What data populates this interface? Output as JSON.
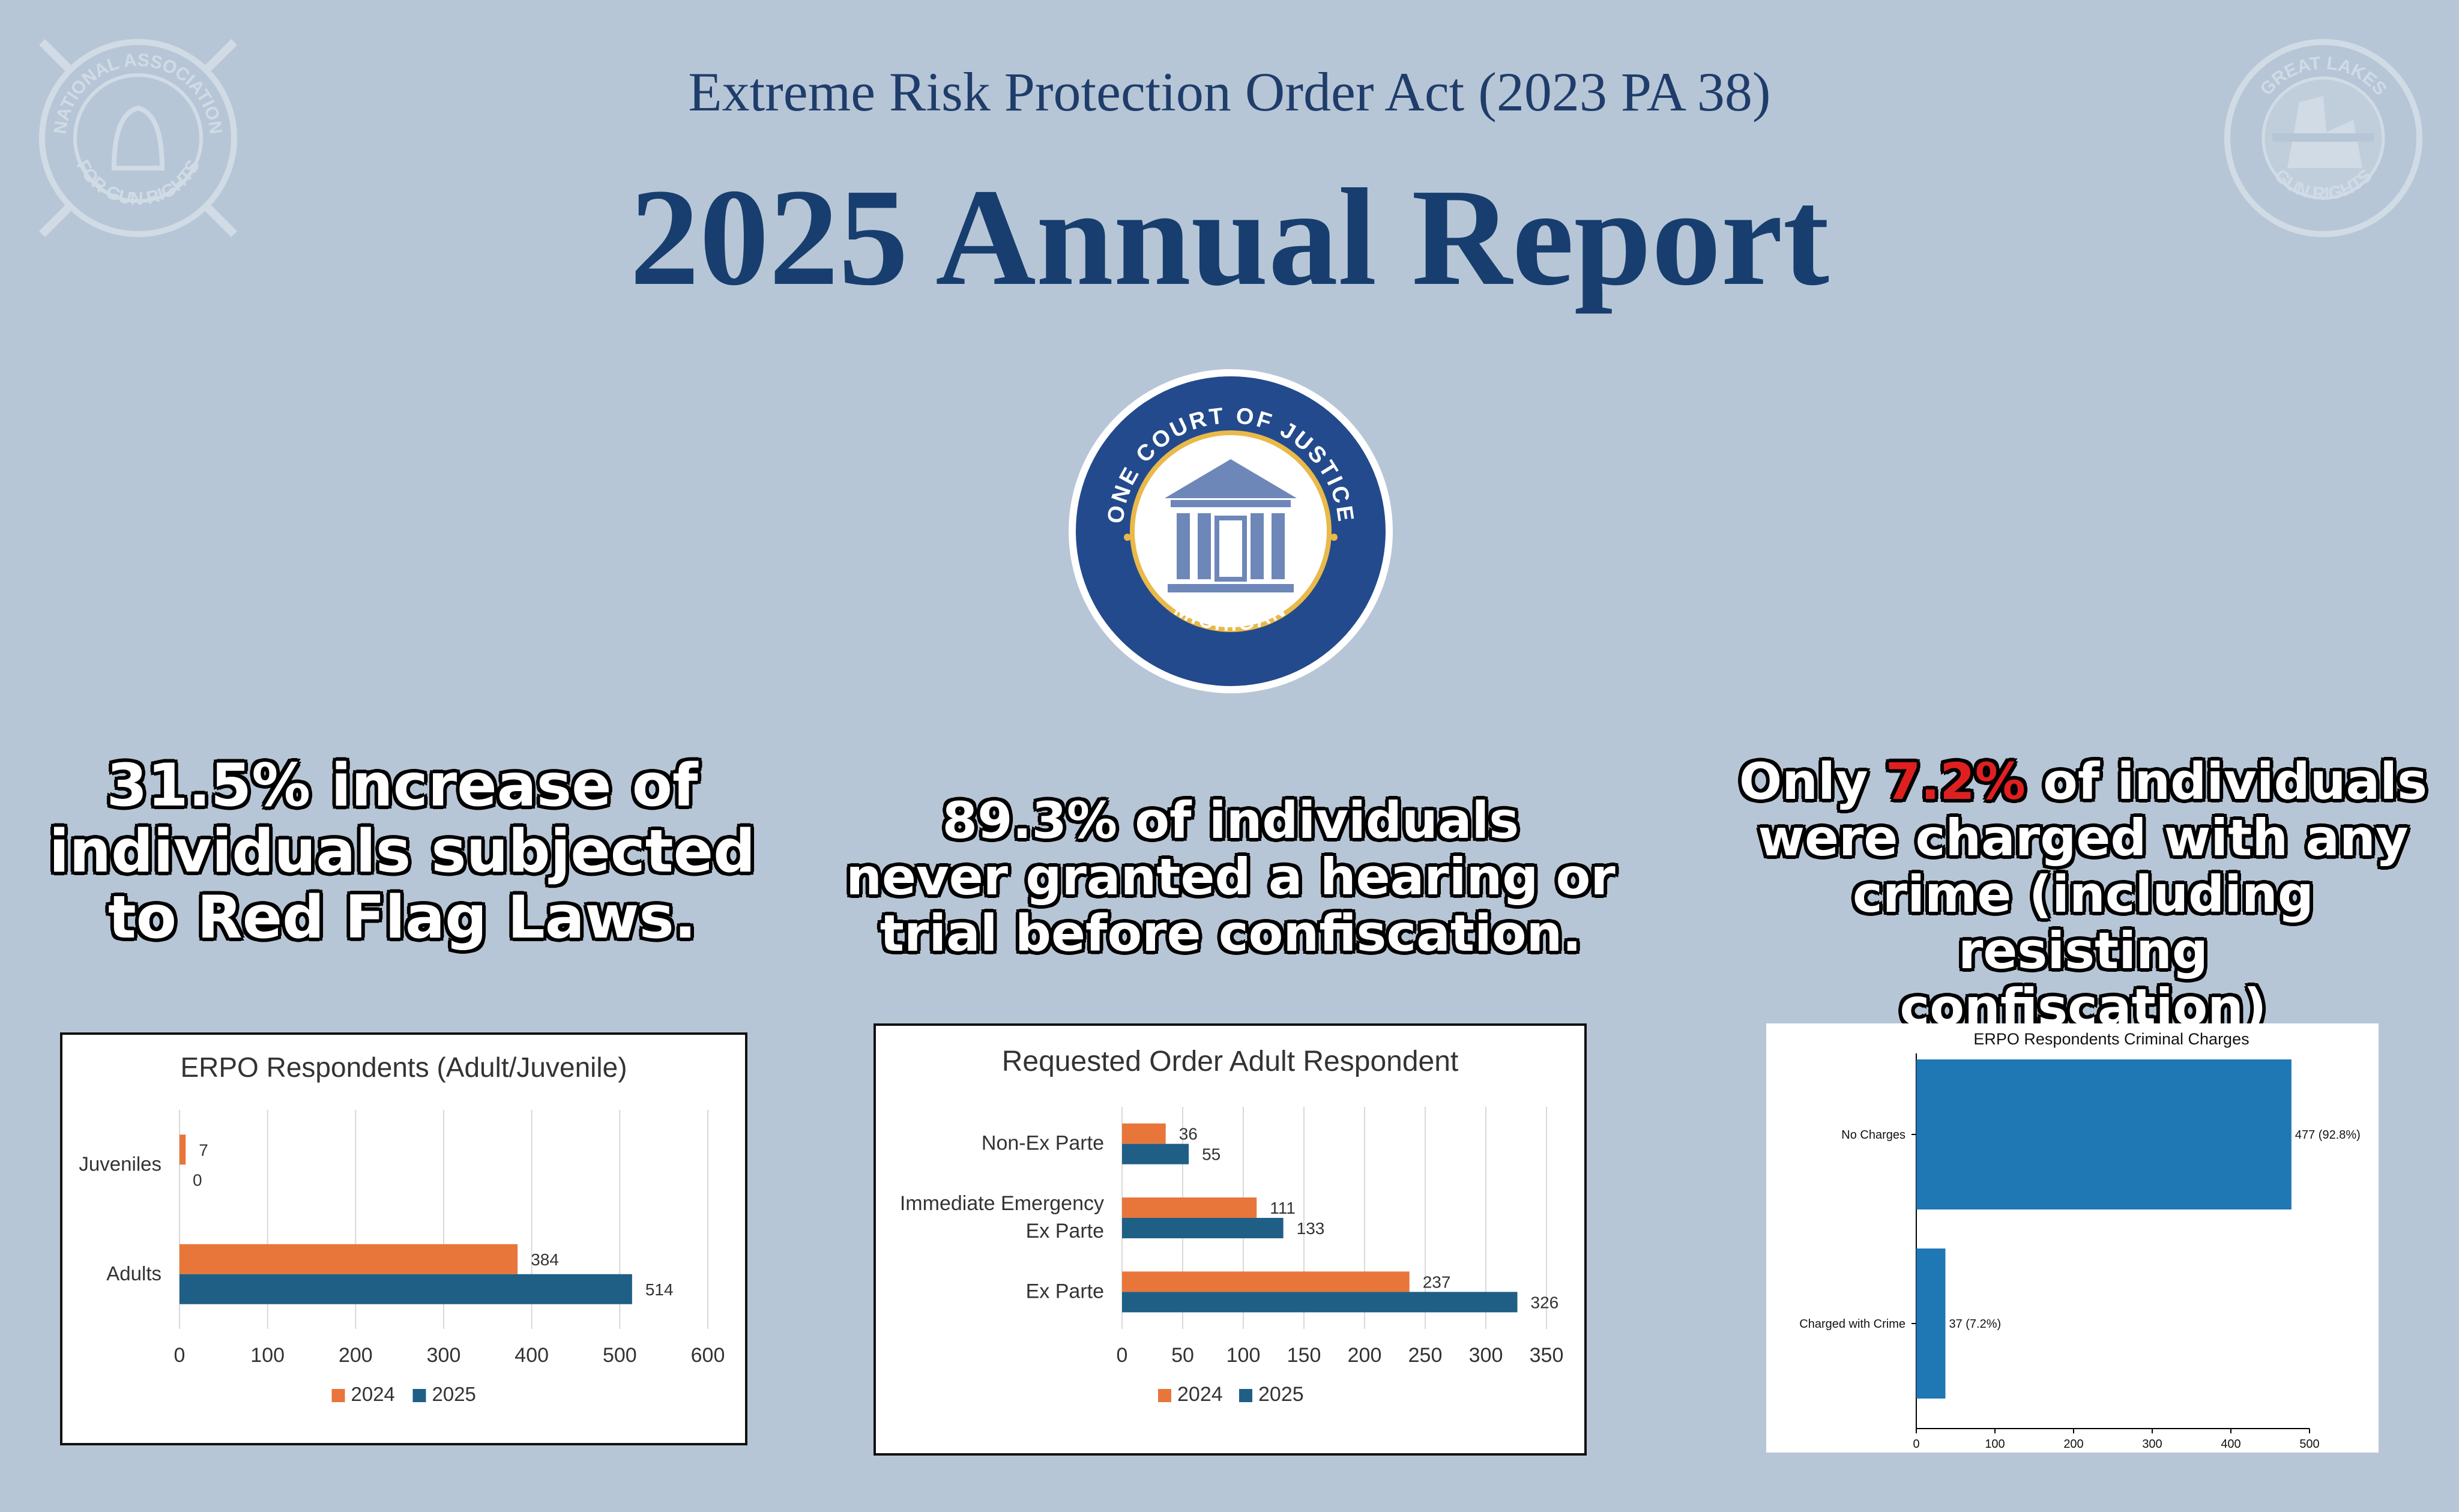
{
  "header": {
    "subtitle": "Extreme Risk Protection Order Act (2023 PA 38)",
    "title": "2025 Annual Report"
  },
  "logos": {
    "left": {
      "name": "nagr-logo",
      "top_text": "NATIONAL ASSOCIATION",
      "bottom_text": "FOR GUN RIGHTS"
    },
    "right": {
      "name": "great-lakes-logo",
      "top_text": "GREAT LAKES",
      "bottom_text": "GUN RIGHTS"
    },
    "center": {
      "name": "one-court-of-justice-seal",
      "top_text": "ONE COURT OF JUSTICE",
      "bottom_text": "MICHIGAN"
    }
  },
  "headlines": {
    "left": [
      "31.5% increase of",
      "individuals subjected",
      "to Red Flag Laws."
    ],
    "middle": [
      "89.3% of individuals",
      "never granted a hearing or",
      "trial before confiscation."
    ],
    "right": {
      "line1_prefix": "Only ",
      "line1_highlight": "7.2%",
      "line1_suffix": " of individuals",
      "rest": [
        "were charged with any",
        "crime (including resisting",
        "confiscation)"
      ]
    }
  },
  "colors": {
    "background": "#b7c6d6",
    "series_2024": "#e8763a",
    "series_2025": "#1f5f86",
    "bar_single": "#1f77b4",
    "highlight": "#e02020",
    "title_blue": "#173e6e"
  },
  "chart_data": [
    {
      "type": "bar",
      "orientation": "horizontal",
      "title": "ERPO Respondents (Adult/Juvenile)",
      "categories": [
        "Juveniles",
        "Adults"
      ],
      "series": [
        {
          "name": "2024",
          "values": [
            7,
            384
          ]
        },
        {
          "name": "2025",
          "values": [
            0,
            514
          ]
        }
      ],
      "xlim": [
        0,
        600
      ],
      "xticks": [
        0,
        100,
        200,
        300,
        400,
        500,
        600
      ],
      "grid": true,
      "legend": "bottom"
    },
    {
      "type": "bar",
      "orientation": "horizontal",
      "title": "Requested Order Adult Respondent",
      "categories": [
        "Non-Ex Parte",
        "Immediate Emergency Ex Parte",
        "Ex Parte"
      ],
      "category_lines": [
        [
          "Non-Ex Parte"
        ],
        [
          "Immediate Emergency",
          "Ex Parte"
        ],
        [
          "Ex Parte"
        ]
      ],
      "series": [
        {
          "name": "2024",
          "values": [
            36,
            111,
            237
          ]
        },
        {
          "name": "2025",
          "values": [
            55,
            133,
            326
          ]
        }
      ],
      "xlim": [
        0,
        350
      ],
      "xticks": [
        0,
        50,
        100,
        150,
        200,
        250,
        300,
        350
      ],
      "grid": true,
      "legend": "bottom"
    },
    {
      "type": "bar",
      "orientation": "horizontal",
      "title": "ERPO Respondents Criminal Charges",
      "categories": [
        "No Charges",
        "Charged with Crime"
      ],
      "values": [
        477,
        37
      ],
      "data_labels": [
        "477 (92.8%)",
        "37 (7.2%)"
      ],
      "xlim": [
        0,
        500
      ],
      "xticks": [
        0,
        100,
        200,
        300,
        400,
        500
      ],
      "grid": false,
      "legend": "none"
    }
  ]
}
